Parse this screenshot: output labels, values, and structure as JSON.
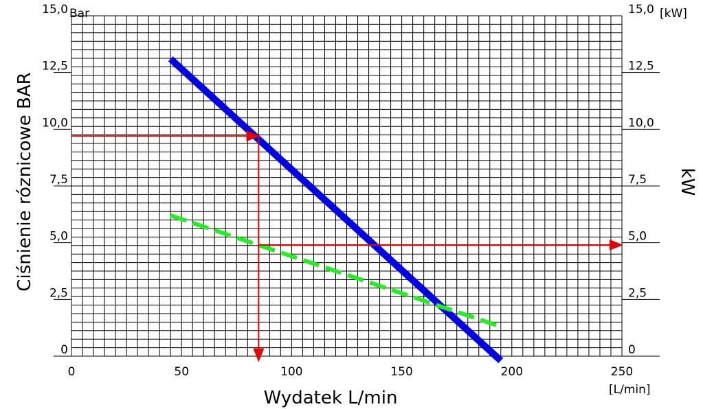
{
  "chart_data": {
    "type": "line",
    "xlabel": "Wydatek L/min",
    "x_unit": "[L/min]",
    "ylabel_left": "Ciśnienie róznicowe BAR",
    "y_unit_left": "Bar",
    "ylabel_right": "kW",
    "y_unit_right": "[kW]",
    "xlim": [
      0,
      250
    ],
    "ylim": [
      0,
      15
    ],
    "x_ticks": [
      "0",
      "50",
      "100",
      "150",
      "200",
      "250"
    ],
    "y_ticks_left": [
      "0",
      "2,5",
      "5,0",
      "7,5",
      "10,0",
      "12,5",
      "15,0"
    ],
    "y_ticks_right": [
      "0",
      "2,5",
      "5,0",
      "7,5",
      "10,0",
      "12,5",
      "15,0"
    ],
    "grid": true,
    "series": [
      {
        "color": "#0000e6",
        "style": "solid",
        "x": [
          45,
          195
        ],
        "y": [
          13.1,
          -0.2
        ]
      },
      {
        "color": "#22ee22",
        "style": "dashed",
        "x": [
          45,
          195
        ],
        "y": [
          6.2,
          1.3
        ]
      }
    ],
    "annotations": [
      {
        "color": "#e60000",
        "type": "arrow",
        "from": [
          0,
          9.7
        ],
        "to": [
          85,
          9.7
        ]
      },
      {
        "color": "#e60000",
        "type": "arrow",
        "from": [
          85,
          9.7
        ],
        "to": [
          85,
          -0.2
        ]
      },
      {
        "color": "#e60000",
        "type": "arrow",
        "from": [
          85,
          4.9
        ],
        "to": [
          250,
          4.9
        ]
      }
    ]
  }
}
